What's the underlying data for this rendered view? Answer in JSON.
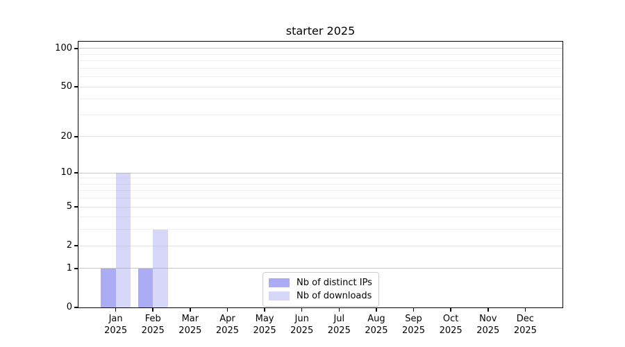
{
  "chart_data": {
    "type": "bar",
    "title": "starter 2025",
    "categories": [
      "Jan",
      "Feb",
      "Mar",
      "Apr",
      "May",
      "Jun",
      "Jul",
      "Aug",
      "Sep",
      "Oct",
      "Nov",
      "Dec"
    ],
    "category_year": "2025",
    "series": [
      {
        "name": "Nb of distinct IPs",
        "color": "rgba(140,140,240,0.72)",
        "values": [
          1,
          1,
          0,
          0,
          0,
          0,
          0,
          0,
          0,
          0,
          0,
          0
        ]
      },
      {
        "name": "Nb of downloads",
        "color": "rgba(140,140,240,0.35)",
        "values": [
          10,
          3,
          0,
          0,
          0,
          0,
          0,
          0,
          0,
          0,
          0,
          0
        ]
      }
    ],
    "xlabel": "",
    "ylabel": "",
    "yscale": "log1p",
    "ylim": [
      0,
      113.3
    ],
    "grid": true,
    "legend_position": "lower center",
    "y_ticks": [
      {
        "value": 0,
        "label": "0",
        "grid": "none"
      },
      {
        "value": 1,
        "label": "1",
        "grid": "major"
      },
      {
        "value": 2,
        "label": "2",
        "grid": "mid"
      },
      {
        "value": 5,
        "label": "5",
        "grid": "mid"
      },
      {
        "value": 10,
        "label": "10",
        "grid": "major"
      },
      {
        "value": 20,
        "label": "20",
        "grid": "mid"
      },
      {
        "value": 50,
        "label": "50",
        "grid": "mid"
      },
      {
        "value": 100,
        "label": "100",
        "grid": "major"
      }
    ],
    "y_minor_ticks": [
      3,
      4,
      6,
      7,
      8,
      9,
      30,
      40,
      60,
      70,
      80,
      90
    ],
    "colors": {
      "grid_major": "#c6c6c6",
      "grid_mid": "#e2e2e2",
      "grid_minor": "#efefef",
      "spine": "#000000",
      "legend_border": "#cccccc",
      "background": "#ffffff"
    }
  }
}
